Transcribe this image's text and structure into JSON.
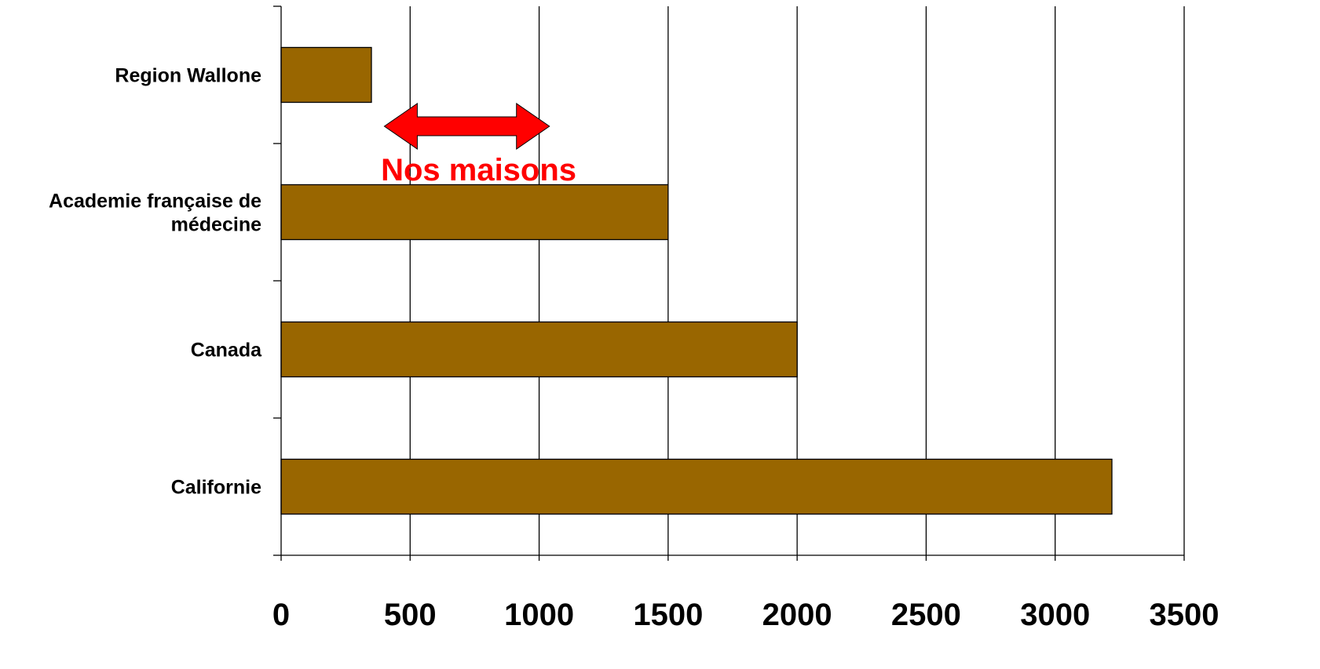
{
  "chart_data": {
    "type": "bar",
    "orientation": "horizontal",
    "categories": [
      [
        "Region Wallone"
      ],
      [
        "Academie française de",
        "médecine"
      ],
      [
        "Canada"
      ],
      [
        "Californie"
      ]
    ],
    "values": [
      350,
      1500,
      2000,
      3220
    ],
    "xlim": [
      0,
      3500
    ],
    "xticks": [
      "0",
      "500",
      "1000",
      "1500",
      "2000",
      "2500",
      "3000",
      "3500"
    ],
    "xtick_values": [
      0,
      500,
      1000,
      1500,
      2000,
      2500,
      3000,
      3500
    ],
    "grid": "vertical",
    "legend": "none",
    "title": "",
    "xlabel": "",
    "ylabel": "",
    "bar_color": "#996600",
    "annotation": {
      "text": "Nos maisons",
      "arrow_range": [
        400,
        1040
      ],
      "color": "#ff0000"
    }
  }
}
